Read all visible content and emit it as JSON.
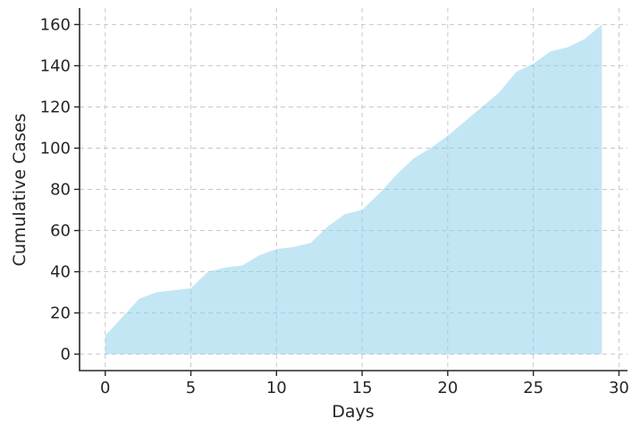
{
  "chart_data": {
    "type": "area",
    "title": "",
    "xlabel": "Days",
    "ylabel": "Cumulative Cases",
    "xlim": [
      -1.5,
      30.5
    ],
    "ylim": [
      -8,
      168
    ],
    "xticks": [
      0,
      5,
      10,
      15,
      20,
      25,
      30
    ],
    "yticks": [
      0,
      20,
      40,
      60,
      80,
      100,
      120,
      140,
      160
    ],
    "grid": true,
    "fill_color": "#87ceeb",
    "fill_opacity": 0.5,
    "series": [
      {
        "x": [
          0,
          1,
          2,
          3,
          4,
          5,
          6,
          7,
          8,
          9,
          10,
          11,
          12,
          13,
          14,
          15,
          16,
          17,
          18,
          19,
          20,
          21,
          22,
          23,
          24,
          25,
          26,
          27,
          28,
          29
        ],
        "values": [
          9,
          18,
          27,
          30,
          31,
          32,
          40,
          42,
          43,
          48,
          51,
          52,
          54,
          62,
          68,
          70,
          78,
          87,
          95,
          100,
          106,
          113,
          120,
          127,
          137,
          141,
          147,
          149,
          153,
          160
        ]
      }
    ]
  }
}
